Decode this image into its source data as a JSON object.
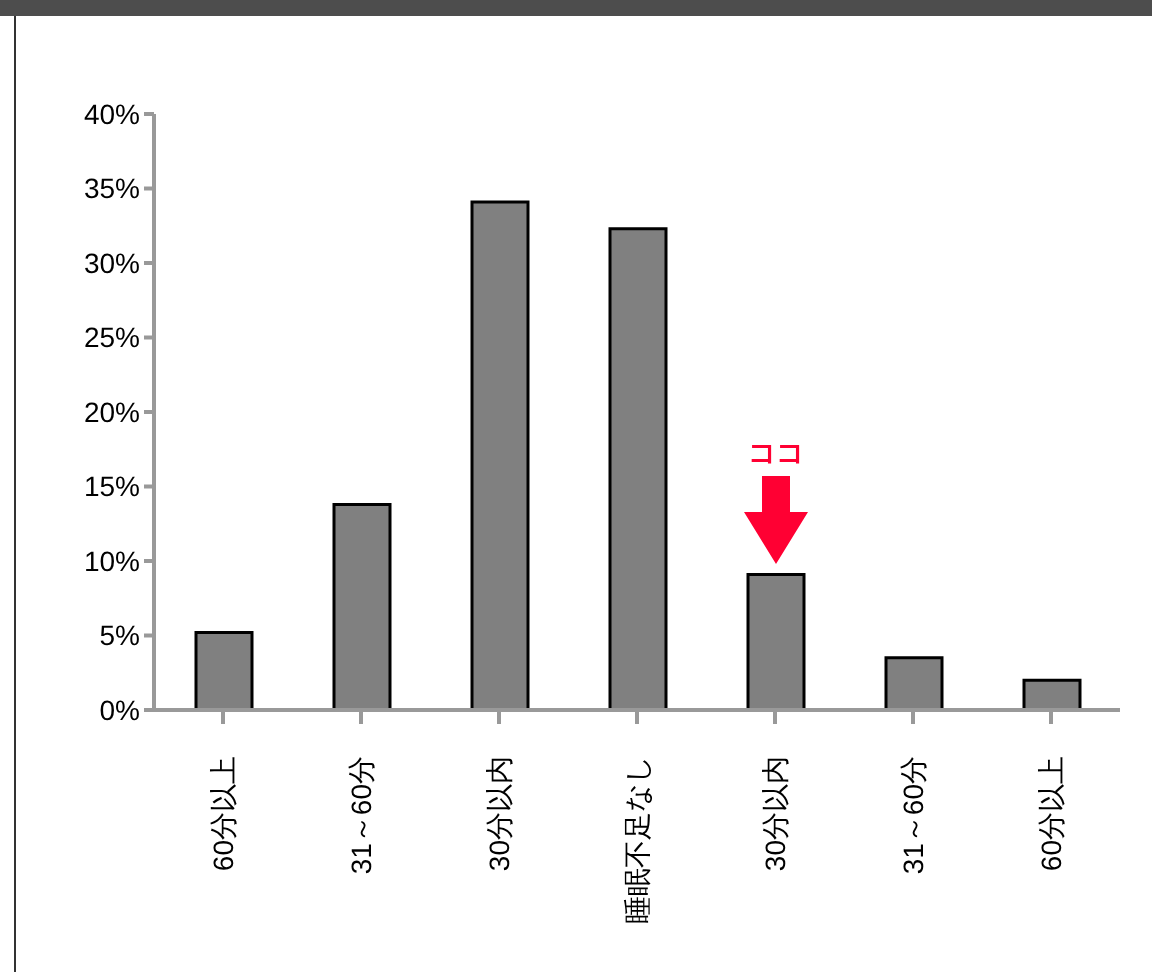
{
  "chart_data": {
    "type": "bar",
    "categories": [
      "60分以上",
      "31～60分",
      "30分以内",
      "睡眠不足なし",
      "30分以内",
      "31～60分",
      "60分以上"
    ],
    "values": [
      5.2,
      13.8,
      34.1,
      32.3,
      9.1,
      3.5,
      2.0
    ],
    "color": "#808080",
    "ylim": [
      0,
      40
    ],
    "yticks": [
      {
        "value": 0,
        "label": "0%"
      },
      {
        "value": 5,
        "label": "5%"
      },
      {
        "value": 10,
        "label": "10%"
      },
      {
        "value": 15,
        "label": "15%"
      },
      {
        "value": 20,
        "label": "20%"
      },
      {
        "value": 25,
        "label": "25%"
      },
      {
        "value": 30,
        "label": "30%"
      },
      {
        "value": 35,
        "label": "35%"
      },
      {
        "value": 40,
        "label": "40%"
      }
    ],
    "annotations": [
      "ココ"
    ],
    "grid": false,
    "legend": false
  }
}
